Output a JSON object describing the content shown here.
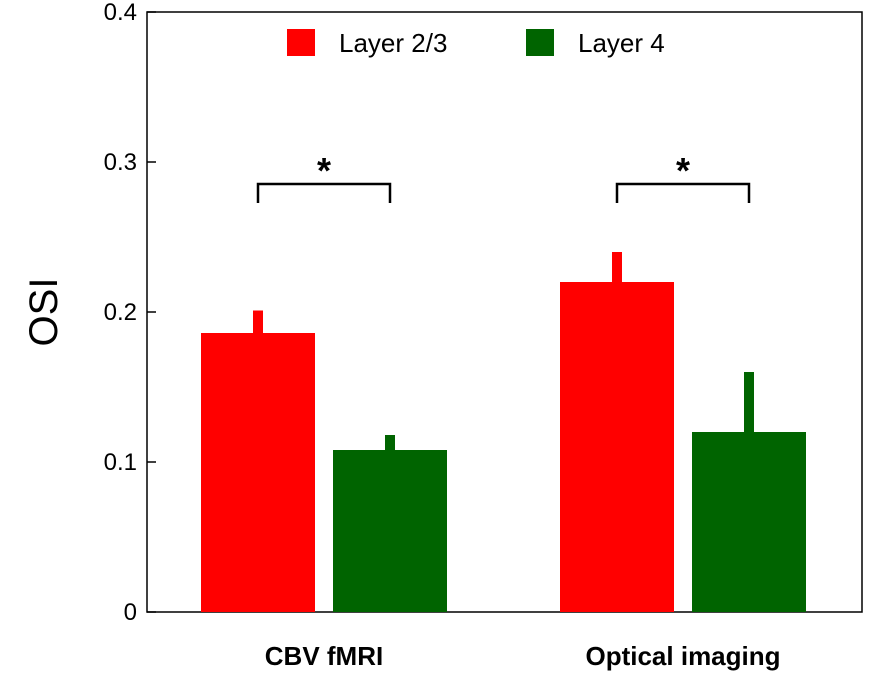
{
  "chart_data": {
    "type": "bar",
    "title": "",
    "xlabel": "",
    "ylabel": "OSI",
    "ylim": [
      0,
      0.4
    ],
    "yticks": [
      "0",
      "0.1",
      "0.2",
      "0.3",
      "0.4"
    ],
    "categories": [
      "CBV fMRI",
      "Optical imaging"
    ],
    "series": [
      {
        "name": "Layer 2/3",
        "color": "#ff0000",
        "values": [
          0.186,
          0.22
        ],
        "errors": [
          0.015,
          0.02
        ]
      },
      {
        "name": "Layer 4",
        "color": "#006400",
        "values": [
          0.108,
          0.12
        ],
        "errors": [
          0.01,
          0.04
        ]
      }
    ],
    "legend": {
      "position": "top",
      "entries": [
        "Layer 2/3",
        "Layer 4"
      ]
    },
    "significance": [
      {
        "category": "CBV fMRI",
        "label": "*"
      },
      {
        "category": "Optical imaging",
        "label": "*"
      }
    ]
  }
}
